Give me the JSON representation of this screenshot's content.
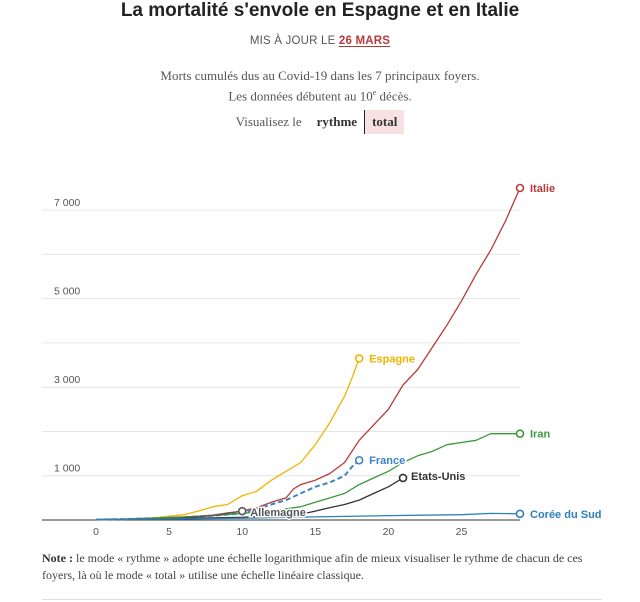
{
  "header": {
    "title": "La mortalité s'envole en Espagne et en Italie",
    "updated_prefix": "MIS À JOUR LE",
    "updated_date": "26 MARS",
    "subtitle_line1": "Morts cumulés dus au Covid-19 dans les 7 principaux foyers.",
    "subtitle_line2_pre": "Les données débutent au 10",
    "subtitle_line2_sup": "e",
    "subtitle_line2_post": " décès."
  },
  "controls": {
    "label": "Visualisez le",
    "options": [
      "rythme",
      "total"
    ],
    "selected": "total"
  },
  "note": {
    "bold": "Note :",
    "text": " le mode « rythme » adopte une échelle logarithmique afin de mieux visualiser le rythme de chacun de ces foyers, là où le mode « total » utilise une échelle linéaire classique."
  },
  "chart_data": {
    "type": "line",
    "xlim": [
      0,
      29
    ],
    "ylim": [
      0,
      7500
    ],
    "x_ticks": [
      0,
      5,
      10,
      15,
      20,
      25
    ],
    "x_tick_labels": [
      "0",
      "5",
      "10",
      "15",
      "20",
      "25"
    ],
    "y_ticks": [
      1000,
      3000,
      5000,
      7000
    ],
    "y_tick_labels": [
      "1 000",
      "3 000",
      "5 000",
      "7 000"
    ],
    "grid": true,
    "series": [
      {
        "name": "Italie",
        "color": "#b73a3a",
        "dashed": false,
        "x": [
          0,
          2,
          4,
          6,
          8,
          9,
          10,
          11,
          12,
          13,
          13.5,
          14,
          15,
          16,
          17,
          18,
          19,
          20,
          21,
          22,
          23,
          24,
          25,
          26,
          27,
          28,
          29
        ],
        "y": [
          10,
          20,
          40,
          60,
          110,
          160,
          200,
          280,
          400,
          500,
          700,
          800,
          900,
          1050,
          1300,
          1800,
          2150,
          2500,
          3050,
          3400,
          3900,
          4400,
          4950,
          5550,
          6100,
          6750,
          7500
        ]
      },
      {
        "name": "Espagne",
        "color": "#f0b400",
        "dashed": false,
        "x": [
          0,
          2,
          4,
          6,
          7,
          8,
          9,
          10,
          11,
          12,
          13,
          14,
          15,
          16,
          17,
          17.5,
          18
        ],
        "y": [
          10,
          20,
          50,
          120,
          200,
          300,
          350,
          550,
          650,
          900,
          1100,
          1300,
          1700,
          2200,
          2800,
          3200,
          3650
        ]
      },
      {
        "name": "France",
        "color": "#3d82c4",
        "dashed": true,
        "x": [
          0,
          2,
          4,
          6,
          8,
          10,
          11,
          12,
          13,
          14,
          15,
          16,
          17,
          17.5,
          18
        ],
        "y": [
          10,
          20,
          40,
          60,
          100,
          150,
          250,
          350,
          450,
          600,
          750,
          850,
          1000,
          1200,
          1350
        ]
      },
      {
        "name": "Etats-Unis",
        "color": "#333333",
        "dashed": false,
        "x": [
          0,
          5,
          10,
          12,
          14,
          15,
          16,
          17,
          18,
          19,
          20,
          21
        ],
        "y": [
          10,
          30,
          60,
          90,
          130,
          200,
          280,
          350,
          450,
          600,
          750,
          950
        ]
      },
      {
        "name": "Iran",
        "color": "#3a9a3a",
        "dashed": false,
        "x": [
          0,
          2,
          4,
          6,
          8,
          10,
          12,
          14,
          15,
          16,
          17,
          18,
          19,
          20,
          21,
          22,
          23,
          24,
          25,
          26,
          27,
          28,
          29
        ],
        "y": [
          10,
          20,
          40,
          70,
          100,
          150,
          200,
          300,
          400,
          500,
          600,
          800,
          950,
          1100,
          1300,
          1450,
          1550,
          1700,
          1750,
          1800,
          1950,
          1950,
          1950
        ]
      },
      {
        "name": "Allemagne",
        "color": "#555555",
        "dashed": false,
        "x": [
          0,
          5,
          8,
          9,
          10
        ],
        "y": [
          10,
          30,
          100,
          150,
          200
        ]
      },
      {
        "name": "Corée du Sud",
        "color": "#2f7fb8",
        "dashed": false,
        "x": [
          0,
          5,
          10,
          15,
          20,
          25,
          27,
          29
        ],
        "y": [
          10,
          20,
          40,
          70,
          100,
          120,
          150,
          140
        ]
      }
    ]
  }
}
